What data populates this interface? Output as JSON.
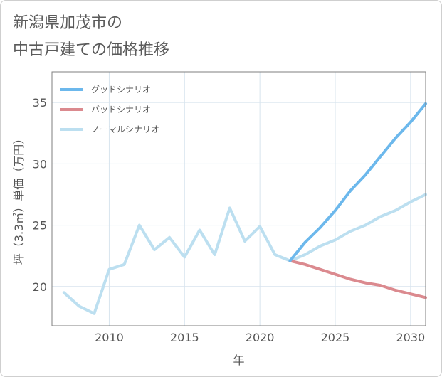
{
  "title_lines": [
    "新潟県加茂市の",
    "中古戸建ての価格推移"
  ],
  "chart_data": {
    "type": "line",
    "title": "新潟県加茂市の中古戸建ての価格推移",
    "xlabel": "年",
    "ylabel": "坪（3.3㎡）単価（万円）",
    "xlim": [
      2006.2,
      2031
    ],
    "ylim": [
      16.8,
      37.5
    ],
    "xticks": [
      2010,
      2015,
      2020,
      2025,
      2030
    ],
    "yticks": [
      20,
      25,
      30,
      35
    ],
    "grid": true,
    "legend_position": "top-left",
    "series": [
      {
        "name": "グッドシナリオ",
        "color": "#6cb8ec",
        "x": [
          2022,
          2023,
          2024,
          2025,
          2026,
          2027,
          2028,
          2029,
          2030,
          2031
        ],
        "y": [
          22.1,
          23.6,
          24.8,
          26.2,
          27.8,
          29.1,
          30.6,
          32.1,
          33.4,
          34.9
        ]
      },
      {
        "name": "バッドシナリオ",
        "color": "#db8a8f",
        "x": [
          2022,
          2023,
          2024,
          2025,
          2026,
          2027,
          2028,
          2029,
          2030,
          2031
        ],
        "y": [
          22.1,
          21.8,
          21.4,
          21.0,
          20.6,
          20.3,
          20.1,
          19.7,
          19.4,
          19.1
        ]
      },
      {
        "name": "ノーマルシナリオ",
        "color": "#bcdff0",
        "x": [
          2007,
          2008,
          2009,
          2010,
          2011,
          2012,
          2013,
          2014,
          2015,
          2016,
          2017,
          2018,
          2019,
          2020,
          2021,
          2022,
          2023,
          2024,
          2025,
          2026,
          2027,
          2028,
          2029,
          2030,
          2031
        ],
        "y": [
          19.5,
          18.4,
          17.8,
          21.4,
          21.8,
          25.0,
          23.0,
          24.0,
          22.4,
          24.6,
          22.6,
          26.4,
          23.7,
          24.9,
          22.6,
          22.1,
          22.6,
          23.3,
          23.8,
          24.5,
          25.0,
          25.7,
          26.2,
          26.9,
          27.5
        ]
      }
    ]
  }
}
